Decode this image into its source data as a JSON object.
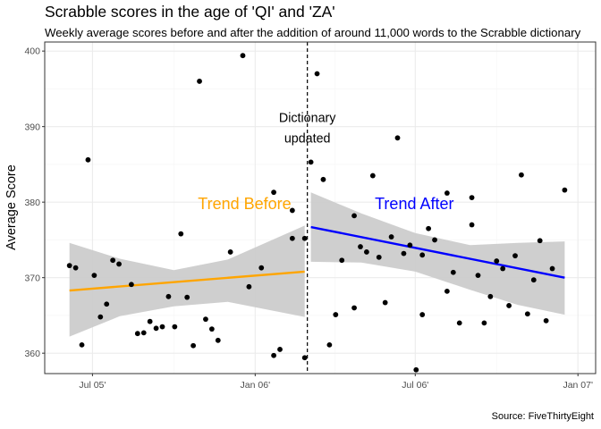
{
  "title": "Scrabble scores in the age of 'QI' and 'ZA'",
  "subtitle": "Weekly average scores before and after the addition of around 11,000 words to the Scrabble dictionary",
  "caption": "Source: FiveThirtyEight",
  "chart_data": {
    "type": "scatter",
    "ylabel": "Average Score",
    "xlabel": "",
    "xlim": [
      "2005-05-08",
      "2007-01-21"
    ],
    "ylim": [
      357.3,
      401.2
    ],
    "x_ticks": [
      {
        "date": "2005-07-01",
        "label": "Jul 05'"
      },
      {
        "date": "2006-01-01",
        "label": "Jan 06'"
      },
      {
        "date": "2006-07-01",
        "label": "Jul 06'"
      },
      {
        "date": "2007-01-01",
        "label": "Jan 07'"
      }
    ],
    "y_ticks": [
      360,
      370,
      380,
      390,
      400
    ],
    "grid": true,
    "event": {
      "date": "2006-03-01",
      "label_line1": "Dictionary",
      "label_line2": "updated",
      "color": "#000000"
    },
    "points": [
      {
        "x": "2005-06-05",
        "y": 371.6
      },
      {
        "x": "2005-06-12",
        "y": 371.3
      },
      {
        "x": "2005-06-19",
        "y": 361.1
      },
      {
        "x": "2005-06-26",
        "y": 385.6
      },
      {
        "x": "2005-07-03",
        "y": 370.3
      },
      {
        "x": "2005-07-10",
        "y": 364.8
      },
      {
        "x": "2005-07-17",
        "y": 366.5
      },
      {
        "x": "2005-07-24",
        "y": 372.3
      },
      {
        "x": "2005-07-31",
        "y": 371.8
      },
      {
        "x": "2005-08-14",
        "y": 369.1
      },
      {
        "x": "2005-08-21",
        "y": 362.6
      },
      {
        "x": "2005-08-28",
        "y": 362.7
      },
      {
        "x": "2005-09-04",
        "y": 364.2
      },
      {
        "x": "2005-09-11",
        "y": 363.3
      },
      {
        "x": "2005-09-18",
        "y": 363.5
      },
      {
        "x": "2005-09-25",
        "y": 367.5
      },
      {
        "x": "2005-10-02",
        "y": 363.5
      },
      {
        "x": "2005-10-09",
        "y": 375.8
      },
      {
        "x": "2005-10-16",
        "y": 367.4
      },
      {
        "x": "2005-10-23",
        "y": 361.0
      },
      {
        "x": "2005-10-30",
        "y": 396.0
      },
      {
        "x": "2005-11-06",
        "y": 364.5
      },
      {
        "x": "2005-11-13",
        "y": 363.2
      },
      {
        "x": "2005-11-20",
        "y": 361.7
      },
      {
        "x": "2005-12-04",
        "y": 373.4
      },
      {
        "x": "2005-12-18",
        "y": 399.4
      },
      {
        "x": "2005-12-25",
        "y": 368.8
      },
      {
        "x": "2006-01-08",
        "y": 371.3
      },
      {
        "x": "2006-01-22",
        "y": 359.7
      },
      {
        "x": "2006-01-22",
        "y": 381.3
      },
      {
        "x": "2006-01-29",
        "y": 360.5
      },
      {
        "x": "2006-02-12",
        "y": 375.2
      },
      {
        "x": "2006-02-12",
        "y": 378.9
      },
      {
        "x": "2006-02-26",
        "y": 375.2
      },
      {
        "x": "2006-02-26",
        "y": 359.4
      },
      {
        "x": "2006-03-05",
        "y": 385.3
      },
      {
        "x": "2006-03-12",
        "y": 397.0
      },
      {
        "x": "2006-03-19",
        "y": 383.0
      },
      {
        "x": "2006-03-26",
        "y": 361.1
      },
      {
        "x": "2006-04-02",
        "y": 365.1
      },
      {
        "x": "2006-04-09",
        "y": 372.3
      },
      {
        "x": "2006-04-23",
        "y": 378.2
      },
      {
        "x": "2006-04-23",
        "y": 366.0
      },
      {
        "x": "2006-04-30",
        "y": 374.1
      },
      {
        "x": "2006-05-07",
        "y": 373.4
      },
      {
        "x": "2006-05-14",
        "y": 383.5
      },
      {
        "x": "2006-05-21",
        "y": 372.7
      },
      {
        "x": "2006-05-28",
        "y": 366.7
      },
      {
        "x": "2006-06-04",
        "y": 375.4
      },
      {
        "x": "2006-06-11",
        "y": 388.5
      },
      {
        "x": "2006-06-18",
        "y": 373.2
      },
      {
        "x": "2006-06-25",
        "y": 374.3
      },
      {
        "x": "2006-07-02",
        "y": 357.8
      },
      {
        "x": "2006-07-09",
        "y": 365.1
      },
      {
        "x": "2006-07-09",
        "y": 373.0
      },
      {
        "x": "2006-07-16",
        "y": 376.5
      },
      {
        "x": "2006-07-23",
        "y": 375.0
      },
      {
        "x": "2006-08-06",
        "y": 368.2
      },
      {
        "x": "2006-08-06",
        "y": 381.2
      },
      {
        "x": "2006-08-13",
        "y": 370.7
      },
      {
        "x": "2006-08-20",
        "y": 364.0
      },
      {
        "x": "2006-09-03",
        "y": 377.0
      },
      {
        "x": "2006-09-03",
        "y": 380.6
      },
      {
        "x": "2006-09-10",
        "y": 370.3
      },
      {
        "x": "2006-09-17",
        "y": 364.0
      },
      {
        "x": "2006-09-24",
        "y": 367.5
      },
      {
        "x": "2006-10-01",
        "y": 372.2
      },
      {
        "x": "2006-10-08",
        "y": 371.2
      },
      {
        "x": "2006-10-15",
        "y": 366.3
      },
      {
        "x": "2006-10-22",
        "y": 372.9
      },
      {
        "x": "2006-10-29",
        "y": 383.6
      },
      {
        "x": "2006-11-05",
        "y": 365.2
      },
      {
        "x": "2006-11-12",
        "y": 369.7
      },
      {
        "x": "2006-11-19",
        "y": 374.9
      },
      {
        "x": "2006-11-26",
        "y": 364.3
      },
      {
        "x": "2006-12-03",
        "y": 371.2
      },
      {
        "x": "2006-12-17",
        "y": 381.6
      }
    ],
    "trends": [
      {
        "name": "Trend Before",
        "color": "#ffa500",
        "label_pos": {
          "x": "2005-12-20",
          "y": 379.8
        },
        "line": [
          [
            "2005-06-05",
            368.3
          ],
          [
            "2006-02-26",
            370.8
          ]
        ],
        "band": [
          [
            "2005-06-05",
            362.2,
            374.6
          ],
          [
            "2005-08-01",
            364.9,
            372.5
          ],
          [
            "2005-10-01",
            366.2,
            371.0
          ],
          [
            "2005-12-01",
            366.8,
            372.4
          ],
          [
            "2006-02-26",
            364.8,
            376.9
          ]
        ]
      },
      {
        "name": "Trend After",
        "color": "#0000ff",
        "label_pos": {
          "x": "2006-06-30",
          "y": 379.8
        },
        "line": [
          [
            "2006-03-05",
            376.7
          ],
          [
            "2006-12-17",
            370.0
          ]
        ],
        "band": [
          [
            "2006-03-05",
            372.1,
            381.3
          ],
          [
            "2006-05-01",
            372.0,
            378.5
          ],
          [
            "2006-07-01",
            370.8,
            375.9
          ],
          [
            "2006-09-01",
            368.4,
            374.3
          ],
          [
            "2006-10-25",
            366.4,
            374.6
          ],
          [
            "2006-12-17",
            365.1,
            374.8
          ]
        ]
      }
    ]
  },
  "style": {
    "panel_border": "#333333",
    "grid_major": "#ebebeb",
    "grid_minor": "#f5f5f5",
    "band_fill": "#cccccc",
    "point_color": "#000000"
  }
}
